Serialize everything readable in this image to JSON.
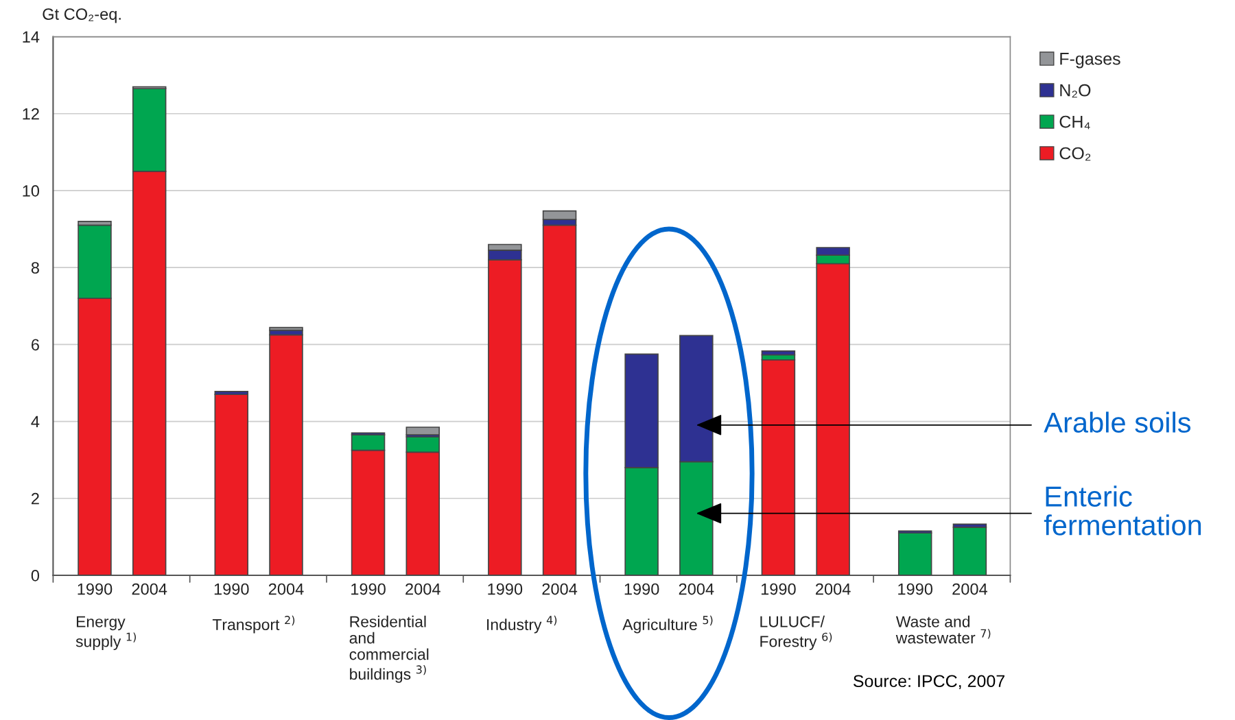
{
  "chart_data": {
    "type": "bar",
    "stacked": true,
    "ylabel": "Gt CO₂-eq.",
    "categories": [
      "1990",
      "2004",
      "1990",
      "2004",
      "1990",
      "2004",
      "1990",
      "2004",
      "1990",
      "2004",
      "1990",
      "2004",
      "1990",
      "2004"
    ],
    "series": [
      {
        "name": "CO₂",
        "color": "#ed1c24",
        "values": [
          7.2,
          10.5,
          4.7,
          6.25,
          3.25,
          3.2,
          8.2,
          9.1,
          null,
          null,
          5.6,
          8.1,
          null,
          null
        ]
      },
      {
        "name": "CH₄",
        "color": "#00a650",
        "values": [
          1.9,
          2.15,
          null,
          null,
          0.4,
          0.4,
          null,
          null,
          2.8,
          2.95,
          0.13,
          0.22,
          1.1,
          1.25
        ]
      },
      {
        "name": "N₂O",
        "color": "#2e3192",
        "values": [
          null,
          null,
          0.08,
          0.12,
          0.05,
          0.05,
          0.25,
          0.15,
          2.95,
          3.28,
          0.1,
          0.2,
          0.05,
          0.08
        ]
      },
      {
        "name": "F-gases",
        "color": "#939598",
        "values": [
          0.1,
          0.05,
          null,
          0.07,
          null,
          0.2,
          0.15,
          0.22,
          null,
          null,
          null,
          null,
          null,
          null
        ]
      }
    ],
    "ylim": [
      0,
      14
    ],
    "yticks": [
      0,
      2,
      4,
      6,
      8,
      10,
      12,
      14
    ],
    "grid": "y",
    "legend": "top right",
    "annotations": [
      "Energy\nsupply $^{1)}$",
      "Transport $^{2)}$",
      "Residential\nand\ncommercial\nbuildings $^{3)}$",
      "Industry $^{4)}$",
      "Agriculture $^{5)}$",
      "LULUCF/\nForestry $^{6)}$",
      "Waste and\nwastewater $^{7)}$",
      "Arable soils",
      "Enteric\nfermentation",
      "Source: IPCC, 2007"
    ]
  }
}
